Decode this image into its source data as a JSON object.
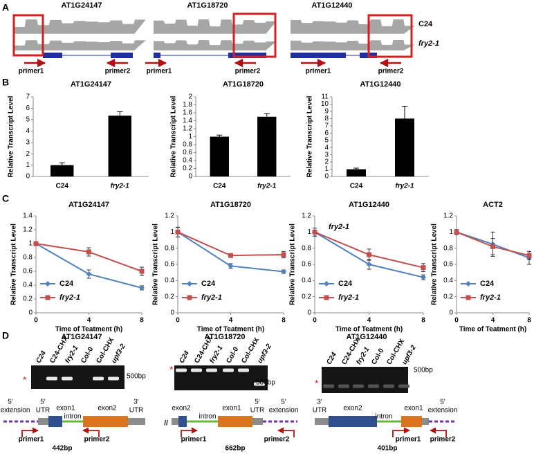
{
  "panel_labels": [
    "A",
    "B",
    "C",
    "D"
  ],
  "panelA": {
    "tracks": [
      {
        "title": "AT1G24147",
        "primers": [
          "primer1",
          "primer2"
        ]
      },
      {
        "title": "AT1G18720",
        "primers": [
          "primer1",
          "primer2"
        ]
      },
      {
        "title": "AT1G12440",
        "primers": [
          "primer1",
          "primer2"
        ]
      }
    ],
    "samples": [
      "C24",
      "fry2-1"
    ]
  },
  "chart_data": [
    {
      "type": "bar",
      "title": "AT1G24147",
      "ylabel": "Relative Transcript Level",
      "categories": [
        "C24",
        "fry2-1"
      ],
      "values": [
        1,
        5.35
      ],
      "errors": [
        0.2,
        0.35
      ],
      "color": "#000000",
      "ylim": [
        0,
        7
      ],
      "yticks": [
        0,
        1,
        2,
        3,
        4,
        5,
        6,
        7
      ]
    },
    {
      "type": "bar",
      "title": "AT1G18720",
      "ylabel": "Relative Transcript Level",
      "categories": [
        "C24",
        "fry2-1"
      ],
      "values": [
        1.0,
        1.5
      ],
      "errors": [
        0.04,
        0.08
      ],
      "color": "#000000",
      "ylim": [
        0,
        2
      ],
      "yticks": [
        0,
        0.2,
        0.4,
        0.6,
        0.8,
        1,
        1.2,
        1.4,
        1.6,
        1.8,
        2
      ]
    },
    {
      "type": "bar",
      "title": "AT1G12440",
      "ylabel": "Relative Transcript Level",
      "categories": [
        "C24",
        "fry2-1"
      ],
      "values": [
        1,
        8
      ],
      "errors": [
        0.15,
        1.7
      ],
      "color": "#000000",
      "ylim": [
        0,
        11
      ],
      "yticks": [
        0,
        1,
        2,
        3,
        4,
        5,
        6,
        7,
        8,
        9,
        10,
        11
      ]
    },
    {
      "type": "line",
      "title": "AT1G24147",
      "ylabel": "Relative Transcript Level",
      "xlabel": "Time of Teatment (h)",
      "x": [
        0,
        4,
        8
      ],
      "xlim": [
        0,
        8
      ],
      "xticks": [
        0,
        4,
        8
      ],
      "ylim": [
        0,
        1.4
      ],
      "yticks": [
        0,
        0.2,
        0.4,
        0.6,
        0.8,
        1,
        1.2,
        1.4
      ],
      "legend": "lower left",
      "series": [
        {
          "name": "C24",
          "color": "#4f81bd",
          "values": [
            1,
            0.56,
            0.36
          ],
          "errors": [
            0.03,
            0.06,
            0.03
          ]
        },
        {
          "name": "fry2-1",
          "color": "#c0504d",
          "values": [
            1,
            0.88,
            0.6
          ],
          "errors": [
            0.03,
            0.06,
            0.06
          ]
        }
      ]
    },
    {
      "type": "line",
      "title": "AT1G18720",
      "ylabel": "Relative Transcript Level",
      "xlabel": "Time of Teatment (h)",
      "x": [
        0,
        4,
        8
      ],
      "xlim": [
        0,
        8
      ],
      "xticks": [
        0,
        4,
        8
      ],
      "ylim": [
        0,
        1.2
      ],
      "yticks": [
        0,
        0.2,
        0.4,
        0.6,
        0.8,
        1,
        1.2
      ],
      "legend": "lower left",
      "series": [
        {
          "name": "C24",
          "color": "#4f81bd",
          "values": [
            1,
            0.58,
            0.51
          ],
          "errors": [
            0.06,
            0.03,
            0.02
          ]
        },
        {
          "name": "fry2-1",
          "color": "#c0504d",
          "values": [
            1,
            0.71,
            0.72
          ],
          "errors": [
            0.06,
            0.02,
            0.04
          ]
        }
      ]
    },
    {
      "type": "line",
      "title": "AT1G12440",
      "ylabel": "Relative Transcript Level",
      "xlabel": "Time of Teatment (h)",
      "annotation": "fry2-1",
      "x": [
        0,
        4,
        8
      ],
      "xlim": [
        0,
        8
      ],
      "xticks": [
        0,
        4,
        8
      ],
      "ylim": [
        0,
        1.2
      ],
      "yticks": [
        0,
        0.2,
        0.4,
        0.6,
        0.8,
        1,
        1.2
      ],
      "legend": "lower left",
      "series": [
        {
          "name": "C24",
          "color": "#4f81bd",
          "values": [
            1,
            0.6,
            0.44
          ],
          "errors": [
            0.05,
            0.06,
            0.03
          ]
        },
        {
          "name": "fry2-1",
          "color": "#c0504d",
          "values": [
            1,
            0.72,
            0.56
          ],
          "errors": [
            0.05,
            0.07,
            0.05
          ]
        }
      ]
    },
    {
      "type": "line",
      "title": "ACT2",
      "ylabel": "Relative Transcript Level",
      "xlabel": "Time of Teatment (h)",
      "x": [
        0,
        4,
        8
      ],
      "xlim": [
        0,
        8
      ],
      "xticks": [
        0,
        4,
        8
      ],
      "ylim": [
        0,
        1.2
      ],
      "yticks": [
        0,
        0.2,
        0.4,
        0.6,
        0.8,
        1,
        1.2
      ],
      "legend": "lower left",
      "series": [
        {
          "name": "C24",
          "color": "#4f81bd",
          "values": [
            1,
            0.85,
            0.68
          ],
          "errors": [
            0.03,
            0.15,
            0.08
          ]
        },
        {
          "name": "fry2-1",
          "color": "#c0504d",
          "values": [
            1,
            0.82,
            0.71
          ],
          "errors": [
            0.03,
            0.1,
            0.05
          ]
        }
      ]
    }
  ],
  "panelD": {
    "gels": [
      {
        "title": "AT1G24147",
        "lanes": [
          "C24",
          "C24-CHX",
          "fry2-1",
          "Col-0",
          "Col-CHX",
          "upf3-2"
        ],
        "marker": "500bp",
        "star": "*"
      },
      {
        "title": "AT1G18720",
        "lanes": [
          "C24",
          "C24-CHX",
          "fry2-1",
          "Col-0",
          "Col-CHX",
          "upf3-2"
        ],
        "marker": "500bp",
        "star": "*"
      },
      {
        "title": "AT1G12440",
        "lanes": [
          "C24",
          "C24-CHX",
          "fry2-1",
          "Col-0",
          "Col-CHX",
          "upf3-2"
        ],
        "marker": "500bp",
        "star": "*"
      }
    ],
    "diagrams": [
      {
        "labels": [
          "5'",
          "extension",
          "5'",
          "UTR",
          "exon1",
          "intron",
          "exon2",
          "3'",
          "UTR",
          "primer1",
          "primer2"
        ],
        "size": "442bp"
      },
      {
        "labels": [
          "//",
          "exon2",
          "intron",
          "exon1",
          "5'",
          "UTR",
          "5'",
          "extension",
          "primer1",
          "primer2"
        ],
        "size": "662bp"
      },
      {
        "labels": [
          "3'",
          "UTR",
          "exon2",
          "intron",
          "exon1",
          "5'",
          "extension",
          "primer1",
          "primer2"
        ],
        "size": "401bp"
      }
    ]
  }
}
